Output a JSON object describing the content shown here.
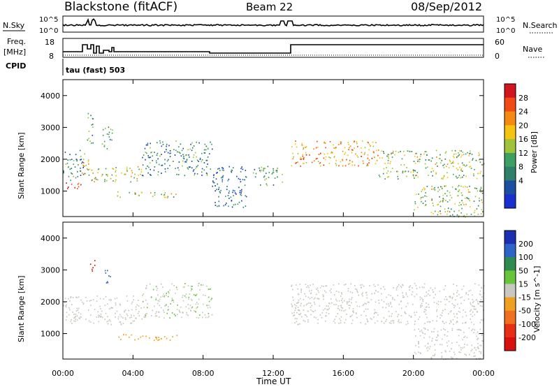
{
  "header": {
    "station": "Blackstone (fitACF)",
    "beam": "Beam 22",
    "date": "08/Sep/2012"
  },
  "noise_panel": {
    "left_label": "N.Sky",
    "right_label": "N.Search",
    "left_ticks": [
      "10^5",
      "10^0"
    ],
    "right_ticks": [
      "10^5",
      "10^0"
    ]
  },
  "freq_panel": {
    "left_label_1": "Freq.",
    "left_label_2": "[MHz]",
    "right_label": "Nave",
    "left_ticks": [
      "18",
      "8"
    ],
    "right_ticks": [
      "60",
      "0"
    ],
    "cpid_label": "CPID",
    "cpid_text": "tau (fast) 503"
  },
  "power_panel": {
    "ylabel": "Slant Range [km]",
    "cbar_label": "Power [dB]",
    "cbar_ticks": [
      "28",
      "24",
      "20",
      "16",
      "12",
      "8",
      "4"
    ],
    "cbar_colors": [
      "#d0161e",
      "#f14a14",
      "#f58a12",
      "#f5c412",
      "#9fc43a",
      "#3e9f62",
      "#2f7f6a",
      "#1c4fa0",
      "#1a2fd0"
    ]
  },
  "velocity_panel": {
    "ylabel": "Slant Range [km]",
    "cbar_label": "Velocity [m s^-1]",
    "cbar_ticks": [
      "200",
      "100",
      "50",
      "15",
      "-15",
      "-50",
      "-100",
      "-200"
    ],
    "cbar_colors": [
      "#1c2fb0",
      "#2e63c8",
      "#2e8c4e",
      "#68c43a",
      "#c8c8c0",
      "#f0a020",
      "#f07020",
      "#e53015",
      "#d81010"
    ]
  },
  "x_axis": {
    "label": "Time UT",
    "ticks": [
      "00:00",
      "04:00",
      "08:00",
      "12:00",
      "16:00",
      "20:00",
      "00:00"
    ]
  },
  "chart_data": {
    "type": "heatmap",
    "title": "Blackstone (fitACF)",
    "xlabel": "Time UT",
    "ylabel": "Slant Range [km]",
    "xlim": [
      0,
      24
    ],
    "ylim": [
      200,
      4500
    ],
    "y_ticks": [
      1000,
      2000,
      3000,
      4000
    ],
    "power_colorbar_range_db": [
      0,
      30
    ],
    "velocity_colorbar_range": [
      -200,
      200
    ],
    "scatter_regions_power": [
      {
        "t0": 0.0,
        "t1": 1.0,
        "r0": 1050,
        "r1": 1300,
        "db": 27
      },
      {
        "t0": 0.0,
        "t1": 1.2,
        "r0": 1350,
        "r1": 2300,
        "db": 8
      },
      {
        "t0": 1.0,
        "t1": 1.6,
        "r0": 1500,
        "r1": 2200,
        "db": 18
      },
      {
        "t0": 1.3,
        "t1": 1.7,
        "r0": 2500,
        "r1": 3500,
        "db": 10
      },
      {
        "t0": 2.2,
        "t1": 2.8,
        "r0": 2300,
        "r1": 3100,
        "db": 12
      },
      {
        "t0": 1.6,
        "t1": 4.5,
        "r0": 1300,
        "r1": 1800,
        "db": 16
      },
      {
        "t0": 3.0,
        "t1": 6.5,
        "r0": 800,
        "r1": 1000,
        "db": 16
      },
      {
        "t0": 4.5,
        "t1": 8.5,
        "r0": 1500,
        "r1": 2600,
        "db": 8
      },
      {
        "t0": 8.5,
        "t1": 10.5,
        "r0": 500,
        "r1": 1800,
        "db": 6
      },
      {
        "t0": 10.8,
        "t1": 12.5,
        "r0": 1200,
        "r1": 1800,
        "db": 10
      },
      {
        "t0": 13.0,
        "t1": 18.0,
        "r0": 1800,
        "r1": 2600,
        "db": 22
      },
      {
        "t0": 18.0,
        "t1": 24.0,
        "r0": 1400,
        "r1": 2300,
        "db": 14
      },
      {
        "t0": 20.0,
        "t1": 24.0,
        "r0": 200,
        "r1": 1200,
        "db": 14
      }
    ],
    "scatter_regions_velocity": [
      {
        "t0": 0.0,
        "t1": 4.5,
        "r0": 1300,
        "r1": 2200,
        "v": -10
      },
      {
        "t0": 1.5,
        "t1": 1.8,
        "r0": 2900,
        "r1": 3400,
        "v": -200
      },
      {
        "t0": 2.3,
        "t1": 2.7,
        "r0": 2500,
        "r1": 3000,
        "v": 150
      },
      {
        "t0": 3.0,
        "t1": 6.5,
        "r0": 800,
        "r1": 1000,
        "v": -60
      },
      {
        "t0": 4.5,
        "t1": 8.5,
        "r0": 1500,
        "r1": 2600,
        "v": 20
      },
      {
        "t0": 13.0,
        "t1": 24.0,
        "r0": 1300,
        "r1": 2600,
        "v": 0
      },
      {
        "t0": 20.0,
        "t1": 24.0,
        "r0": 200,
        "r1": 1200,
        "v": 0
      }
    ]
  }
}
